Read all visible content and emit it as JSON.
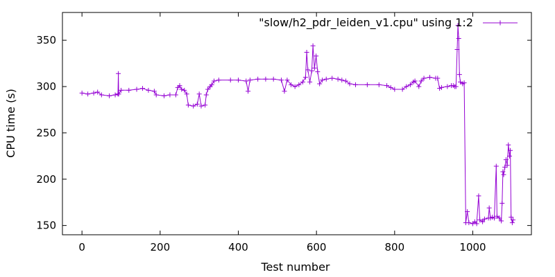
{
  "chart_data": {
    "type": "line",
    "title": "",
    "xlabel": "Test number",
    "ylabel": "CPU time (s)",
    "xlim": [
      -50,
      1150
    ],
    "ylim": [
      140,
      380
    ],
    "x_ticks": [
      0,
      200,
      400,
      600,
      800,
      1000
    ],
    "y_ticks": [
      150,
      200,
      250,
      300,
      350
    ],
    "grid": false,
    "legend_position": "top-right",
    "marker": "plus",
    "series": [
      {
        "name": "\"slow/h2_pdr_leiden_v1.cpu\" using 1:2",
        "color": "#9400d3",
        "points": [
          [
            0,
            293
          ],
          [
            15,
            292
          ],
          [
            30,
            293
          ],
          [
            40,
            294
          ],
          [
            50,
            291
          ],
          [
            70,
            290
          ],
          [
            85,
            291
          ],
          [
            92,
            292
          ],
          [
            93,
            314
          ],
          [
            94,
            292
          ],
          [
            100,
            296
          ],
          [
            120,
            296
          ],
          [
            140,
            297
          ],
          [
            155,
            298
          ],
          [
            170,
            296
          ],
          [
            185,
            295
          ],
          [
            190,
            291
          ],
          [
            210,
            290
          ],
          [
            225,
            291
          ],
          [
            240,
            291
          ],
          [
            245,
            299
          ],
          [
            250,
            301
          ],
          [
            255,
            297
          ],
          [
            262,
            296
          ],
          [
            268,
            292
          ],
          [
            272,
            280
          ],
          [
            285,
            279
          ],
          [
            295,
            281
          ],
          [
            300,
            292
          ],
          [
            305,
            279
          ],
          [
            315,
            280
          ],
          [
            318,
            291
          ],
          [
            322,
            297
          ],
          [
            328,
            300
          ],
          [
            332,
            302
          ],
          [
            338,
            306
          ],
          [
            350,
            307
          ],
          [
            380,
            307
          ],
          [
            400,
            307
          ],
          [
            420,
            306
          ],
          [
            425,
            295
          ],
          [
            430,
            307
          ],
          [
            450,
            308
          ],
          [
            470,
            308
          ],
          [
            490,
            308
          ],
          [
            510,
            307
          ],
          [
            518,
            295
          ],
          [
            525,
            307
          ],
          [
            535,
            302
          ],
          [
            545,
            300
          ],
          [
            555,
            302
          ],
          [
            565,
            305
          ],
          [
            572,
            310
          ],
          [
            575,
            337
          ],
          [
            578,
            318
          ],
          [
            583,
            305
          ],
          [
            588,
            317
          ],
          [
            591,
            344
          ],
          [
            595,
            320
          ],
          [
            599,
            333
          ],
          [
            603,
            316
          ],
          [
            608,
            303
          ],
          [
            615,
            307
          ],
          [
            625,
            308
          ],
          [
            640,
            309
          ],
          [
            655,
            308
          ],
          [
            665,
            307
          ],
          [
            675,
            306
          ],
          [
            685,
            303
          ],
          [
            700,
            302
          ],
          [
            730,
            302
          ],
          [
            760,
            302
          ],
          [
            780,
            301
          ],
          [
            790,
            299
          ],
          [
            800,
            297
          ],
          [
            820,
            297
          ],
          [
            830,
            300
          ],
          [
            840,
            302
          ],
          [
            848,
            305
          ],
          [
            852,
            306
          ],
          [
            862,
            300
          ],
          [
            868,
            306
          ],
          [
            875,
            309
          ],
          [
            890,
            310
          ],
          [
            905,
            309
          ],
          [
            910,
            309
          ],
          [
            915,
            298
          ],
          [
            920,
            299
          ],
          [
            935,
            300
          ],
          [
            945,
            301
          ],
          [
            950,
            301
          ],
          [
            954,
            300
          ],
          [
            957,
            300
          ],
          [
            960,
            340
          ],
          [
            962,
            366
          ],
          [
            964,
            352
          ],
          [
            966,
            313
          ],
          [
            968,
            305
          ],
          [
            974,
            303
          ],
          [
            978,
            304
          ],
          [
            982,
            153
          ],
          [
            986,
            165
          ],
          [
            990,
            153
          ],
          [
            1000,
            152
          ],
          [
            1005,
            154
          ],
          [
            1010,
            152
          ],
          [
            1015,
            182
          ],
          [
            1018,
            156
          ],
          [
            1025,
            154
          ],
          [
            1030,
            157
          ],
          [
            1040,
            158
          ],
          [
            1042,
            169
          ],
          [
            1045,
            158
          ],
          [
            1050,
            159
          ],
          [
            1055,
            158
          ],
          [
            1060,
            214
          ],
          [
            1062,
            160
          ],
          [
            1068,
            158
          ],
          [
            1073,
            155
          ],
          [
            1075,
            174
          ],
          [
            1077,
            208
          ],
          [
            1079,
            205
          ],
          [
            1082,
            213
          ],
          [
            1085,
            221
          ],
          [
            1088,
            215
          ],
          [
            1091,
            237
          ],
          [
            1094,
            225
          ],
          [
            1096,
            231
          ],
          [
            1098,
            159
          ],
          [
            1101,
            153
          ],
          [
            1103,
            156
          ]
        ]
      }
    ]
  }
}
